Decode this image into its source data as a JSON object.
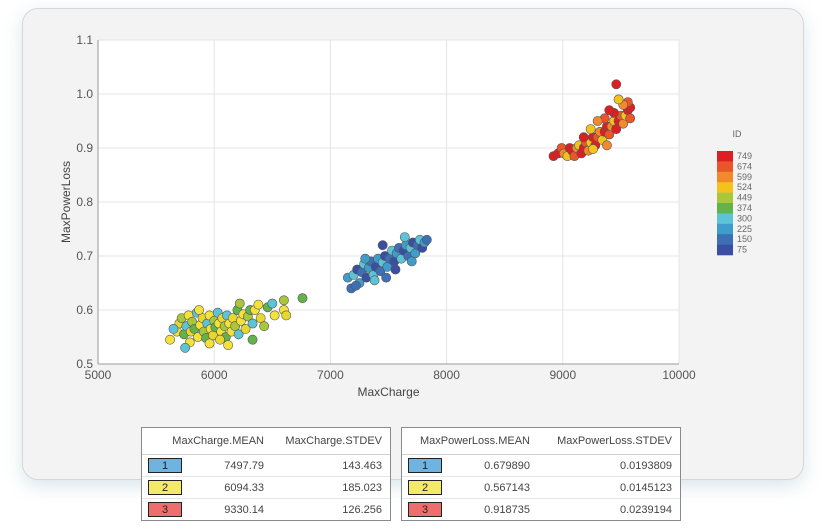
{
  "chart_data": {
    "type": "scatter",
    "xlabel": "MaxCharge",
    "ylabel": "MaxPowerLoss",
    "xlim": [
      5000,
      10000
    ],
    "ylim": [
      0.5,
      1.1
    ],
    "xticks": [
      "5000",
      "6000",
      "7000",
      "8000",
      "9000",
      "10000"
    ],
    "yticks": [
      "0.5",
      "0.6",
      "0.7",
      "0.8",
      "0.9",
      "1.0",
      "1.1"
    ],
    "grid": true,
    "legend": {
      "title": "ID",
      "position": "right",
      "labels": [
        "749",
        "674",
        "599",
        "524",
        "449",
        "374",
        "300",
        "225",
        "150",
        "75"
      ],
      "colors": [
        "#dd1f23",
        "#e9562a",
        "#f08a2a",
        "#f4c21d",
        "#a9c73a",
        "#62b34a",
        "#5dc3d6",
        "#3f9dcb",
        "#3c6fb5",
        "#3a4fa3"
      ]
    },
    "clusters": [
      {
        "center": [
          6094.33,
          0.567
        ],
        "points": [
          [
            5620,
            0.545
          ],
          [
            5680,
            0.56
          ],
          [
            5700,
            0.575
          ],
          [
            5720,
            0.585
          ],
          [
            5740,
            0.555
          ],
          [
            5760,
            0.57
          ],
          [
            5780,
            0.59
          ],
          [
            5790,
            0.54
          ],
          [
            5800,
            0.56
          ],
          [
            5810,
            0.578
          ],
          [
            5830,
            0.565
          ],
          [
            5850,
            0.595
          ],
          [
            5860,
            0.55
          ],
          [
            5880,
            0.572
          ],
          [
            5900,
            0.585
          ],
          [
            5910,
            0.56
          ],
          [
            5930,
            0.548
          ],
          [
            5940,
            0.575
          ],
          [
            5960,
            0.59
          ],
          [
            5970,
            0.565
          ],
          [
            5990,
            0.553
          ],
          [
            6000,
            0.58
          ],
          [
            6010,
            0.568
          ],
          [
            6030,
            0.595
          ],
          [
            6040,
            0.575
          ],
          [
            6060,
            0.56
          ],
          [
            6070,
            0.585
          ],
          [
            6090,
            0.57
          ],
          [
            6100,
            0.55
          ],
          [
            6110,
            0.59
          ],
          [
            6130,
            0.575
          ],
          [
            6150,
            0.56
          ],
          [
            6160,
            0.585
          ],
          [
            6180,
            0.57
          ],
          [
            6200,
            0.6
          ],
          [
            6210,
            0.555
          ],
          [
            6230,
            0.58
          ],
          [
            6250,
            0.592
          ],
          [
            6270,
            0.565
          ],
          [
            6290,
            0.588
          ],
          [
            6310,
            0.6
          ],
          [
            6330,
            0.575
          ],
          [
            6350,
            0.6
          ],
          [
            6380,
            0.61
          ],
          [
            6400,
            0.585
          ],
          [
            6430,
            0.57
          ],
          [
            6460,
            0.605
          ],
          [
            6500,
            0.612
          ],
          [
            6520,
            0.59
          ],
          [
            6600,
            0.6
          ],
          [
            6620,
            0.59
          ],
          [
            6600,
            0.618
          ],
          [
            6760,
            0.622
          ],
          [
            5650,
            0.565
          ],
          [
            5870,
            0.6
          ],
          [
            5960,
            0.538
          ],
          [
            6050,
            0.545
          ],
          [
            6220,
            0.612
          ],
          [
            6330,
            0.545
          ],
          [
            5750,
            0.53
          ],
          [
            6120,
            0.535
          ]
        ],
        "colors": [
          "#f4e23a",
          "#f4e23a",
          "#e8d82e",
          "#a9c73a",
          "#62b34a",
          "#5dc3d6"
        ]
      },
      {
        "center": [
          7497.79,
          0.68
        ],
        "points": [
          [
            7150,
            0.66
          ],
          [
            7180,
            0.64
          ],
          [
            7200,
            0.665
          ],
          [
            7230,
            0.675
          ],
          [
            7250,
            0.65
          ],
          [
            7270,
            0.67
          ],
          [
            7290,
            0.685
          ],
          [
            7310,
            0.66
          ],
          [
            7330,
            0.678
          ],
          [
            7350,
            0.69
          ],
          [
            7370,
            0.665
          ],
          [
            7390,
            0.68
          ],
          [
            7410,
            0.695
          ],
          [
            7430,
            0.672
          ],
          [
            7450,
            0.688
          ],
          [
            7470,
            0.7
          ],
          [
            7490,
            0.68
          ],
          [
            7510,
            0.695
          ],
          [
            7530,
            0.71
          ],
          [
            7550,
            0.69
          ],
          [
            7570,
            0.705
          ],
          [
            7590,
            0.715
          ],
          [
            7610,
            0.695
          ],
          [
            7630,
            0.71
          ],
          [
            7650,
            0.72
          ],
          [
            7670,
            0.7
          ],
          [
            7690,
            0.715
          ],
          [
            7710,
            0.725
          ],
          [
            7730,
            0.705
          ],
          [
            7750,
            0.72
          ],
          [
            7770,
            0.73
          ],
          [
            7790,
            0.715
          ],
          [
            7810,
            0.725
          ],
          [
            7830,
            0.73
          ],
          [
            7640,
            0.735
          ],
          [
            7450,
            0.72
          ],
          [
            7300,
            0.695
          ],
          [
            7220,
            0.645
          ],
          [
            7380,
            0.655
          ],
          [
            7560,
            0.675
          ],
          [
            7700,
            0.69
          ],
          [
            7480,
            0.66
          ]
        ],
        "colors": [
          "#3f9dcb",
          "#3c6fb5",
          "#5dc3d6",
          "#3a4fa3"
        ]
      },
      {
        "center": [
          9330.14,
          0.919
        ],
        "points": [
          [
            8920,
            0.885
          ],
          [
            8960,
            0.89
          ],
          [
            8990,
            0.9
          ],
          [
            9010,
            0.89
          ],
          [
            9040,
            0.885
          ],
          [
            9060,
            0.9
          ],
          [
            9080,
            0.895
          ],
          [
            9100,
            0.885
          ],
          [
            9120,
            0.9
          ],
          [
            9140,
            0.905
          ],
          [
            9160,
            0.89
          ],
          [
            9180,
            0.9
          ],
          [
            9200,
            0.91
          ],
          [
            9220,
            0.895
          ],
          [
            9240,
            0.91
          ],
          [
            9260,
            0.92
          ],
          [
            9280,
            0.905
          ],
          [
            9300,
            0.92
          ],
          [
            9320,
            0.93
          ],
          [
            9340,
            0.915
          ],
          [
            9360,
            0.93
          ],
          [
            9380,
            0.94
          ],
          [
            9400,
            0.925
          ],
          [
            9420,
            0.94
          ],
          [
            9440,
            0.95
          ],
          [
            9460,
            0.935
          ],
          [
            9480,
            0.95
          ],
          [
            9500,
            0.96
          ],
          [
            9520,
            0.945
          ],
          [
            9540,
            0.96
          ],
          [
            9560,
            0.97
          ],
          [
            9580,
            0.975
          ],
          [
            9560,
            0.985
          ],
          [
            9520,
            0.98
          ],
          [
            9480,
            0.99
          ],
          [
            9440,
            0.965
          ],
          [
            9400,
            0.97
          ],
          [
            9360,
            0.955
          ],
          [
            9300,
            0.95
          ],
          [
            9240,
            0.935
          ],
          [
            9180,
            0.92
          ],
          [
            9460,
            1.018
          ],
          [
            9580,
            0.955
          ],
          [
            9380,
            0.905
          ],
          [
            9260,
            0.898
          ]
        ],
        "colors": [
          "#dd1f23",
          "#dd1f23",
          "#e9562a",
          "#f08a2a",
          "#f4c21d"
        ]
      }
    ]
  },
  "tables": [
    {
      "headers": [
        "MaxCharge.MEAN",
        "MaxCharge.STDEV"
      ],
      "rows": [
        {
          "id": "1",
          "color": "#6fb3e0",
          "mean": "7497.79",
          "stdev": "143.463"
        },
        {
          "id": "2",
          "color": "#f3ea6b",
          "mean": "6094.33",
          "stdev": "185.023"
        },
        {
          "id": "3",
          "color": "#ee6d6d",
          "mean": "9330.14",
          "stdev": "126.256"
        }
      ]
    },
    {
      "headers": [
        "MaxPowerLoss.MEAN",
        "MaxPowerLoss.STDEV"
      ],
      "rows": [
        {
          "id": "1",
          "color": "#6fb3e0",
          "mean": "0.679890",
          "stdev": "0.0193809"
        },
        {
          "id": "2",
          "color": "#f3ea6b",
          "mean": "0.567143",
          "stdev": "0.0145123"
        },
        {
          "id": "3",
          "color": "#ee6d6d",
          "mean": "0.918735",
          "stdev": "0.0239194"
        }
      ]
    }
  ]
}
